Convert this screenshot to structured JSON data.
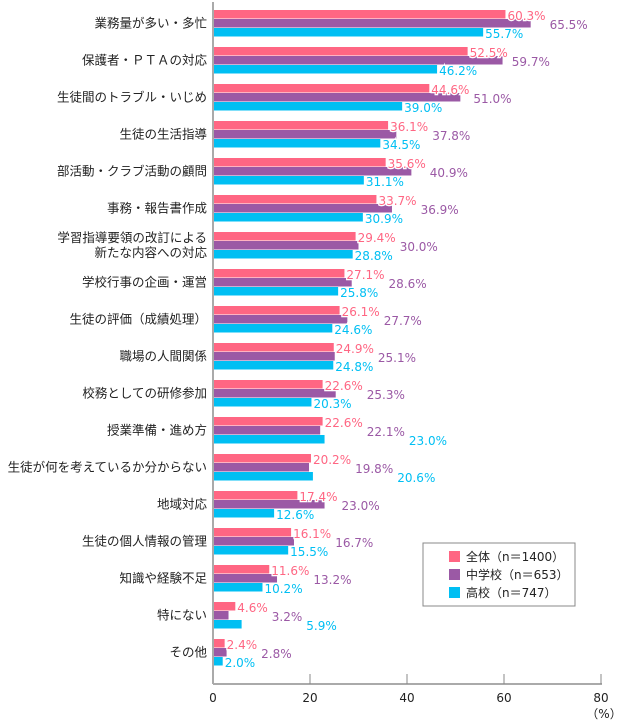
{
  "chart_data": {
    "type": "bar",
    "orientation": "horizontal",
    "categories": [
      "業務量が多い・多忙",
      "保護者・ＰＴＡの対応",
      "生徒間のトラブル・いじめ",
      "生徒の生活指導",
      "部活動・クラブ活動の顧問",
      "事務・報告書作成",
      "学習指導要領の改訂による\n新たな内容への対応",
      "学校行事の企画・運営",
      "生徒の評価（成績処理）",
      "職場の人間関係",
      "校務としての研修参加",
      "授業準備・進め方",
      "生徒が何を考えているか分からない",
      "地域対応",
      "生徒の個人情報の管理",
      "知識や経験不足",
      "特にない",
      "その他"
    ],
    "series": [
      {
        "name": "全体（n＝1400）",
        "color": "#ff6683",
        "values": [
          60.3,
          52.5,
          44.6,
          36.1,
          35.6,
          33.7,
          29.4,
          27.1,
          26.1,
          24.9,
          22.6,
          22.6,
          20.2,
          17.4,
          16.1,
          11.6,
          4.6,
          2.4
        ]
      },
      {
        "name": "中学校（n＝653）",
        "color": "#9b59a5",
        "values": [
          65.5,
          59.7,
          51.0,
          37.8,
          40.9,
          36.9,
          30.0,
          28.6,
          27.7,
          25.1,
          25.3,
          22.1,
          19.8,
          23.0,
          16.7,
          13.2,
          3.2,
          2.8
        ]
      },
      {
        "name": "高校（n＝747）",
        "color": "#00bff3",
        "values": [
          55.7,
          46.2,
          39.0,
          34.5,
          31.1,
          30.9,
          28.8,
          25.8,
          24.6,
          24.8,
          20.3,
          23.0,
          20.6,
          12.6,
          15.5,
          10.2,
          5.9,
          2.0
        ]
      }
    ],
    "xlim": [
      0,
      80
    ],
    "xticks": [
      "0",
      "20",
      "40",
      "60",
      "80"
    ],
    "xunit": "（%）",
    "value_suffix": "%",
    "grid": false,
    "legend_position": "bottom-right"
  }
}
